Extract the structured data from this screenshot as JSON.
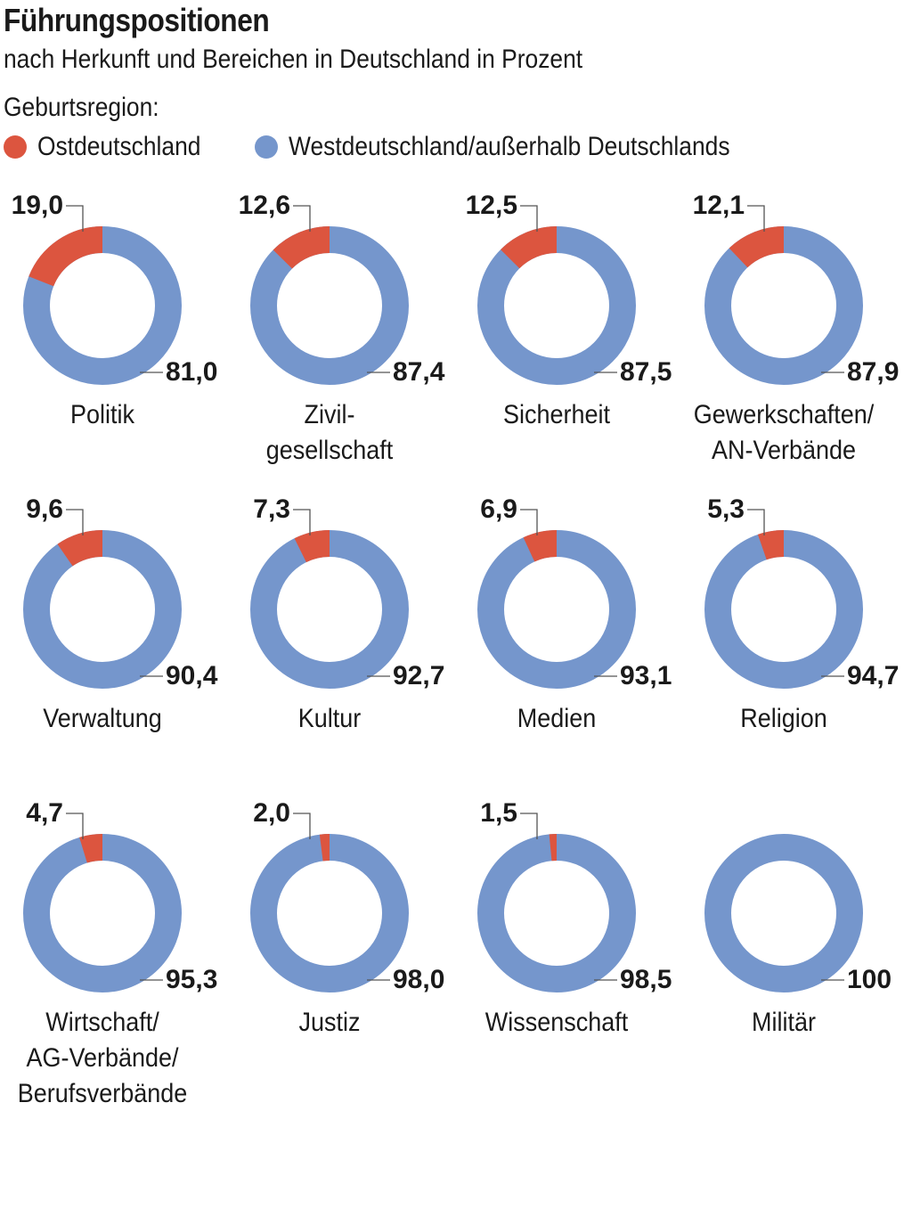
{
  "chart_data": {
    "type": "donut",
    "title": "Führungspositionen",
    "subtitle": "nach Herkunft und Bereichen in Deutschland in Prozent",
    "legend_title": "Geburtsregion:",
    "legend_position": "top-left",
    "series": [
      {
        "name": "Ostdeutschland",
        "color": "#dc553f"
      },
      {
        "name": "Westdeutschland/außerhalb Deutschlands",
        "color": "#7596cc"
      }
    ],
    "charts": [
      {
        "category": "Politik",
        "label_lines": [
          "Politik"
        ],
        "ost": 19.0,
        "west": 81.0,
        "ost_label": "19,0",
        "west_label": "81,0"
      },
      {
        "category": "Zivilgesellschaft",
        "label_lines": [
          "Zivil-",
          "gesellschaft"
        ],
        "ost": 12.6,
        "west": 87.4,
        "ost_label": "12,6",
        "west_label": "87,4"
      },
      {
        "category": "Sicherheit",
        "label_lines": [
          "Sicherheit"
        ],
        "ost": 12.5,
        "west": 87.5,
        "ost_label": "12,5",
        "west_label": "87,5"
      },
      {
        "category": "Gewerkschaften/AN-Verbände",
        "label_lines": [
          "Gewerkschaften/",
          "AN-Verbände"
        ],
        "ost": 12.1,
        "west": 87.9,
        "ost_label": "12,1",
        "west_label": "87,9"
      },
      {
        "category": "Verwaltung",
        "label_lines": [
          "Verwaltung"
        ],
        "ost": 9.6,
        "west": 90.4,
        "ost_label": "9,6",
        "west_label": "90,4"
      },
      {
        "category": "Kultur",
        "label_lines": [
          "Kultur"
        ],
        "ost": 7.3,
        "west": 92.7,
        "ost_label": "7,3",
        "west_label": "92,7"
      },
      {
        "category": "Medien",
        "label_lines": [
          "Medien"
        ],
        "ost": 6.9,
        "west": 93.1,
        "ost_label": "6,9",
        "west_label": "93,1"
      },
      {
        "category": "Religion",
        "label_lines": [
          "Religion"
        ],
        "ost": 5.3,
        "west": 94.7,
        "ost_label": "5,3",
        "west_label": "94,7"
      },
      {
        "category": "Wirtschaft/AG-Verbände/Berufsverbände",
        "label_lines": [
          "Wirtschaft/",
          "AG-Verbände/",
          "Berufsverbände"
        ],
        "ost": 4.7,
        "west": 95.3,
        "ost_label": "4,7",
        "west_label": "95,3"
      },
      {
        "category": "Justiz",
        "label_lines": [
          "Justiz"
        ],
        "ost": 2.0,
        "west": 98.0,
        "ost_label": "2,0",
        "west_label": "98,0"
      },
      {
        "category": "Wissenschaft",
        "label_lines": [
          "Wissenschaft"
        ],
        "ost": 1.5,
        "west": 98.5,
        "ost_label": "1,5",
        "west_label": "98,5"
      },
      {
        "category": "Militär",
        "label_lines": [
          "Militär"
        ],
        "ost": 0,
        "west": 100,
        "ost_label": "",
        "west_label": "100"
      }
    ]
  }
}
